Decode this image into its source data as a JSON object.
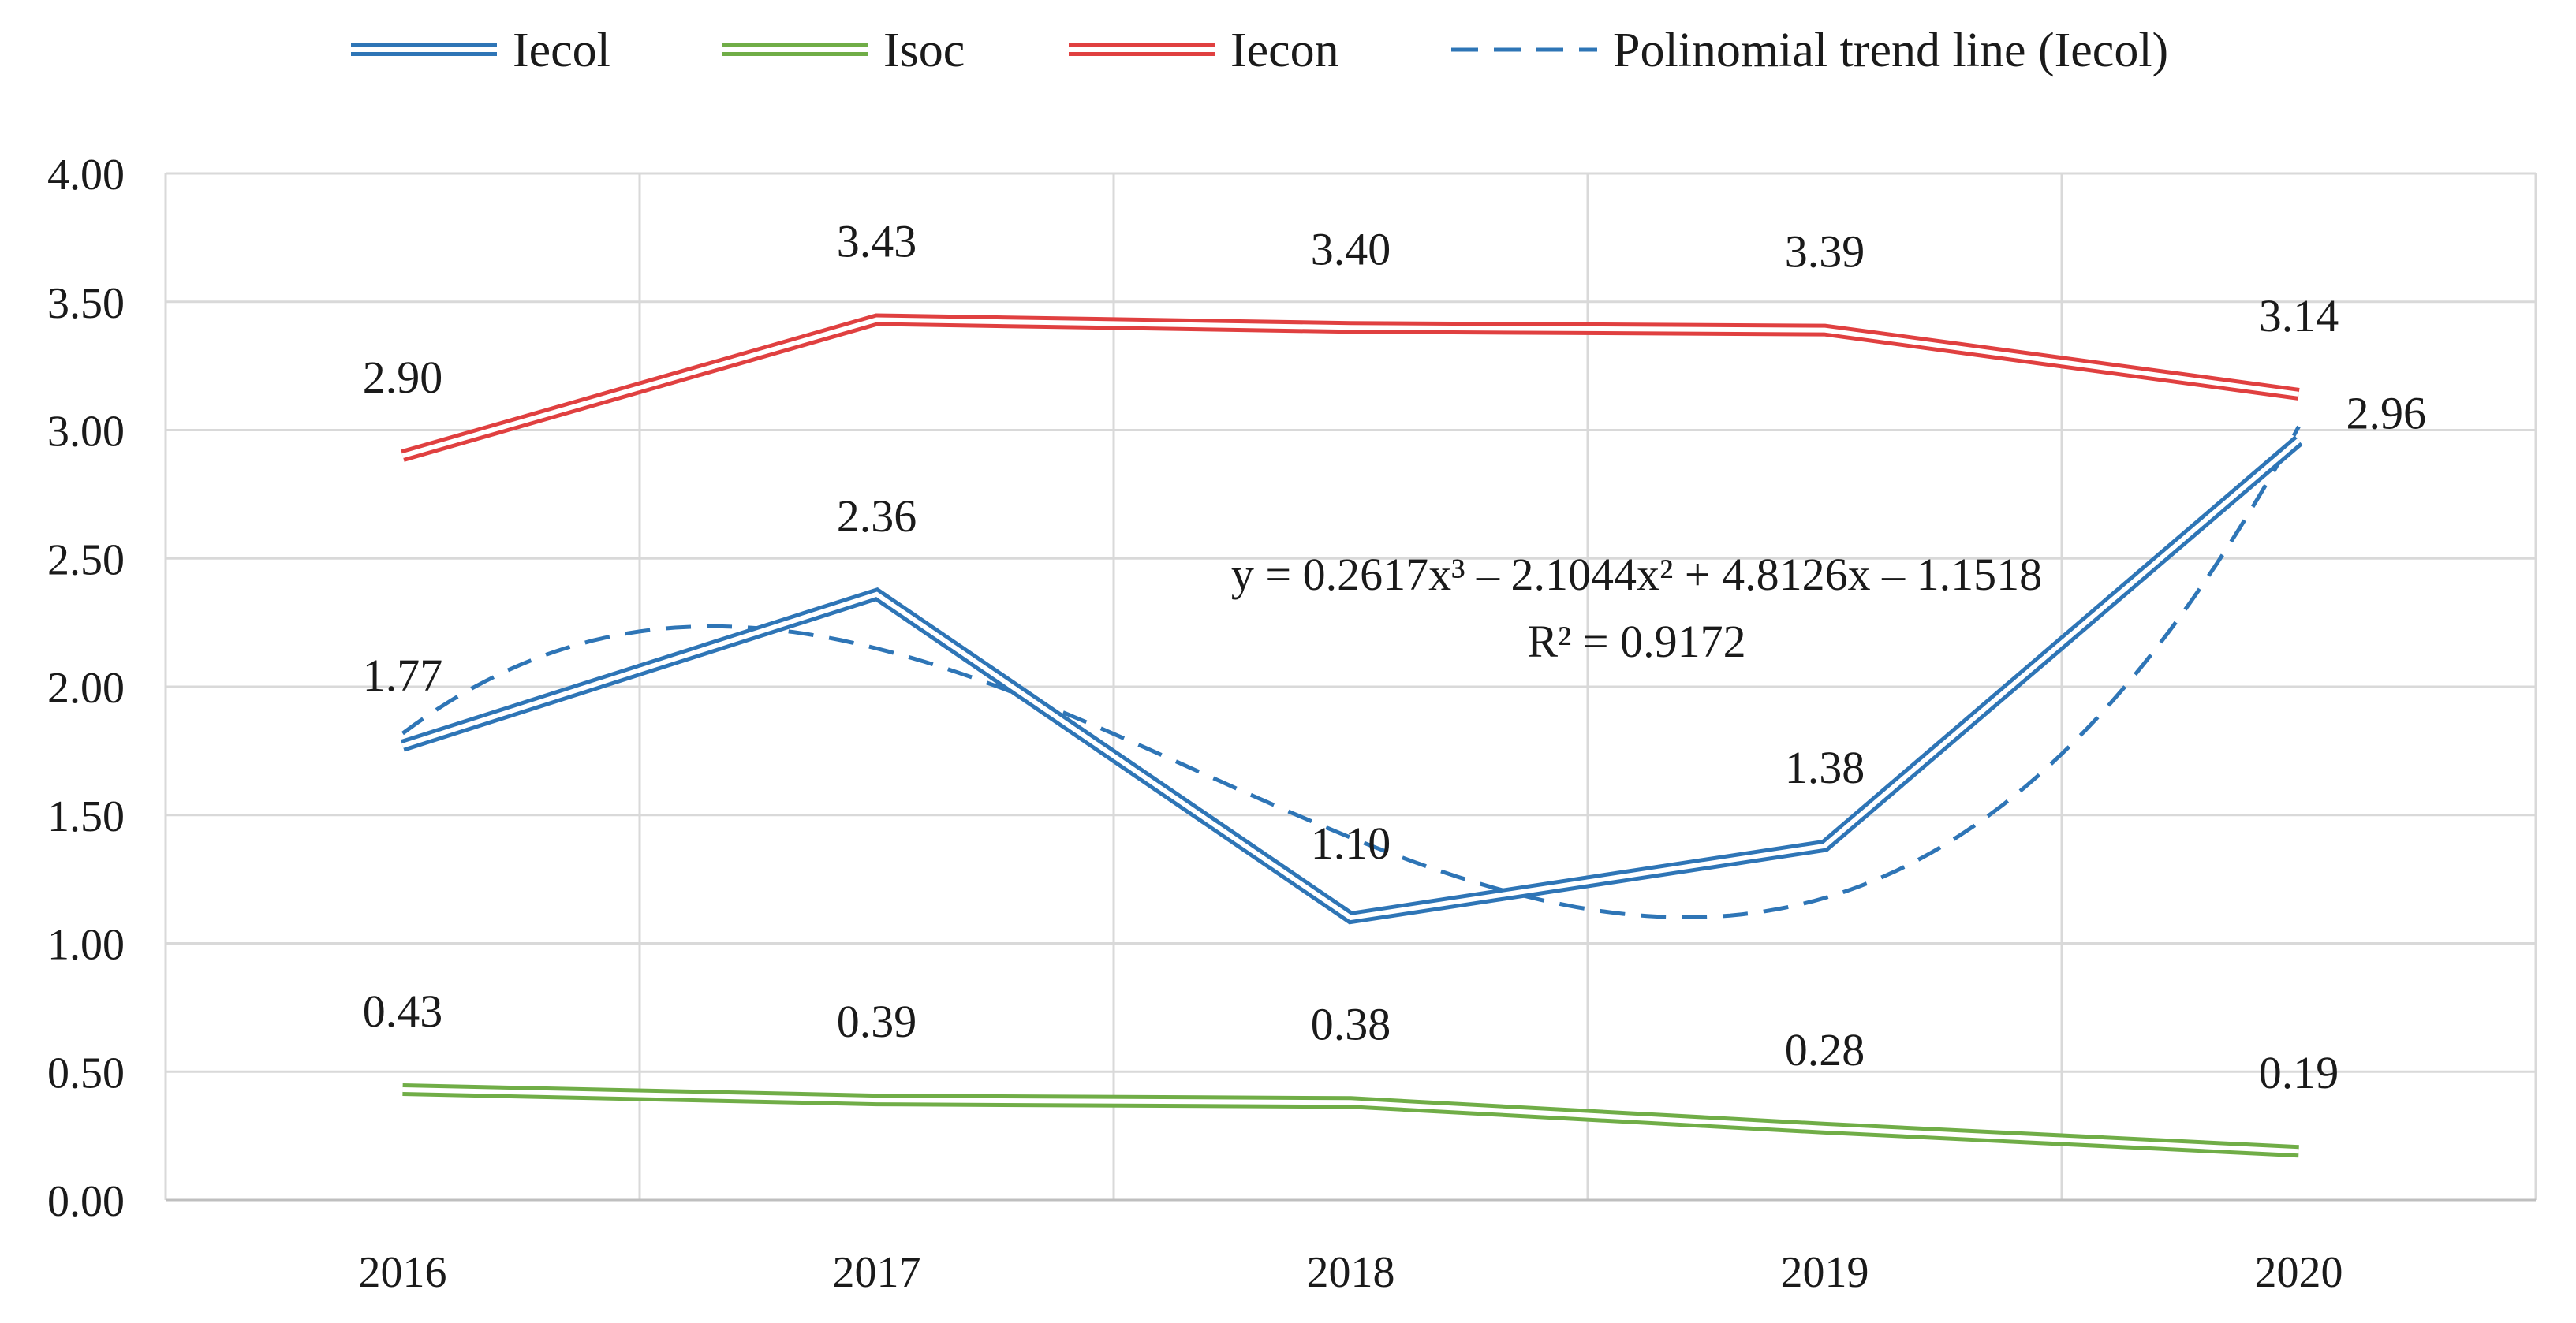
{
  "chart_data": {
    "type": "line",
    "title": "",
    "xlabel": "",
    "ylabel": "",
    "categories": [
      "2016",
      "2017",
      "2018",
      "2019",
      "2020"
    ],
    "ylim": [
      0,
      4
    ],
    "yticks": [
      "0.00",
      "0.50",
      "1.00",
      "1.50",
      "2.00",
      "2.50",
      "3.00",
      "3.50",
      "4.00"
    ],
    "grid": true,
    "legend_position": "top",
    "series": [
      {
        "name": "Iecol",
        "color": "#2e75b6",
        "style": "double",
        "values": [
          1.77,
          2.36,
          1.1,
          1.38,
          2.96
        ],
        "labels": [
          "1.77",
          "2.36",
          "1.10",
          "1.38",
          "2.96"
        ]
      },
      {
        "name": "Isoc",
        "color": "#70ad47",
        "style": "double",
        "values": [
          0.43,
          0.39,
          0.38,
          0.28,
          0.19
        ],
        "labels": [
          "0.43",
          "0.39",
          "0.38",
          "0.28",
          "0.19"
        ]
      },
      {
        "name": "Iecon",
        "color": "#e04040",
        "style": "double",
        "values": [
          2.9,
          3.43,
          3.4,
          3.39,
          3.14
        ],
        "labels": [
          "2.90",
          "3.43",
          "3.40",
          "3.39",
          "3.14"
        ]
      }
    ],
    "trendline": {
      "name": "Polinomial trend line (Iecol)",
      "color": "#2e75b6",
      "style": "dashed",
      "coefficients": [
        0.2617,
        -2.1044,
        4.8126,
        -1.1518
      ],
      "equation": "y = 0.2617x³ – 2.1044x² + 4.8126x – 1.1518",
      "r_squared": "R² = 0.9172"
    }
  }
}
